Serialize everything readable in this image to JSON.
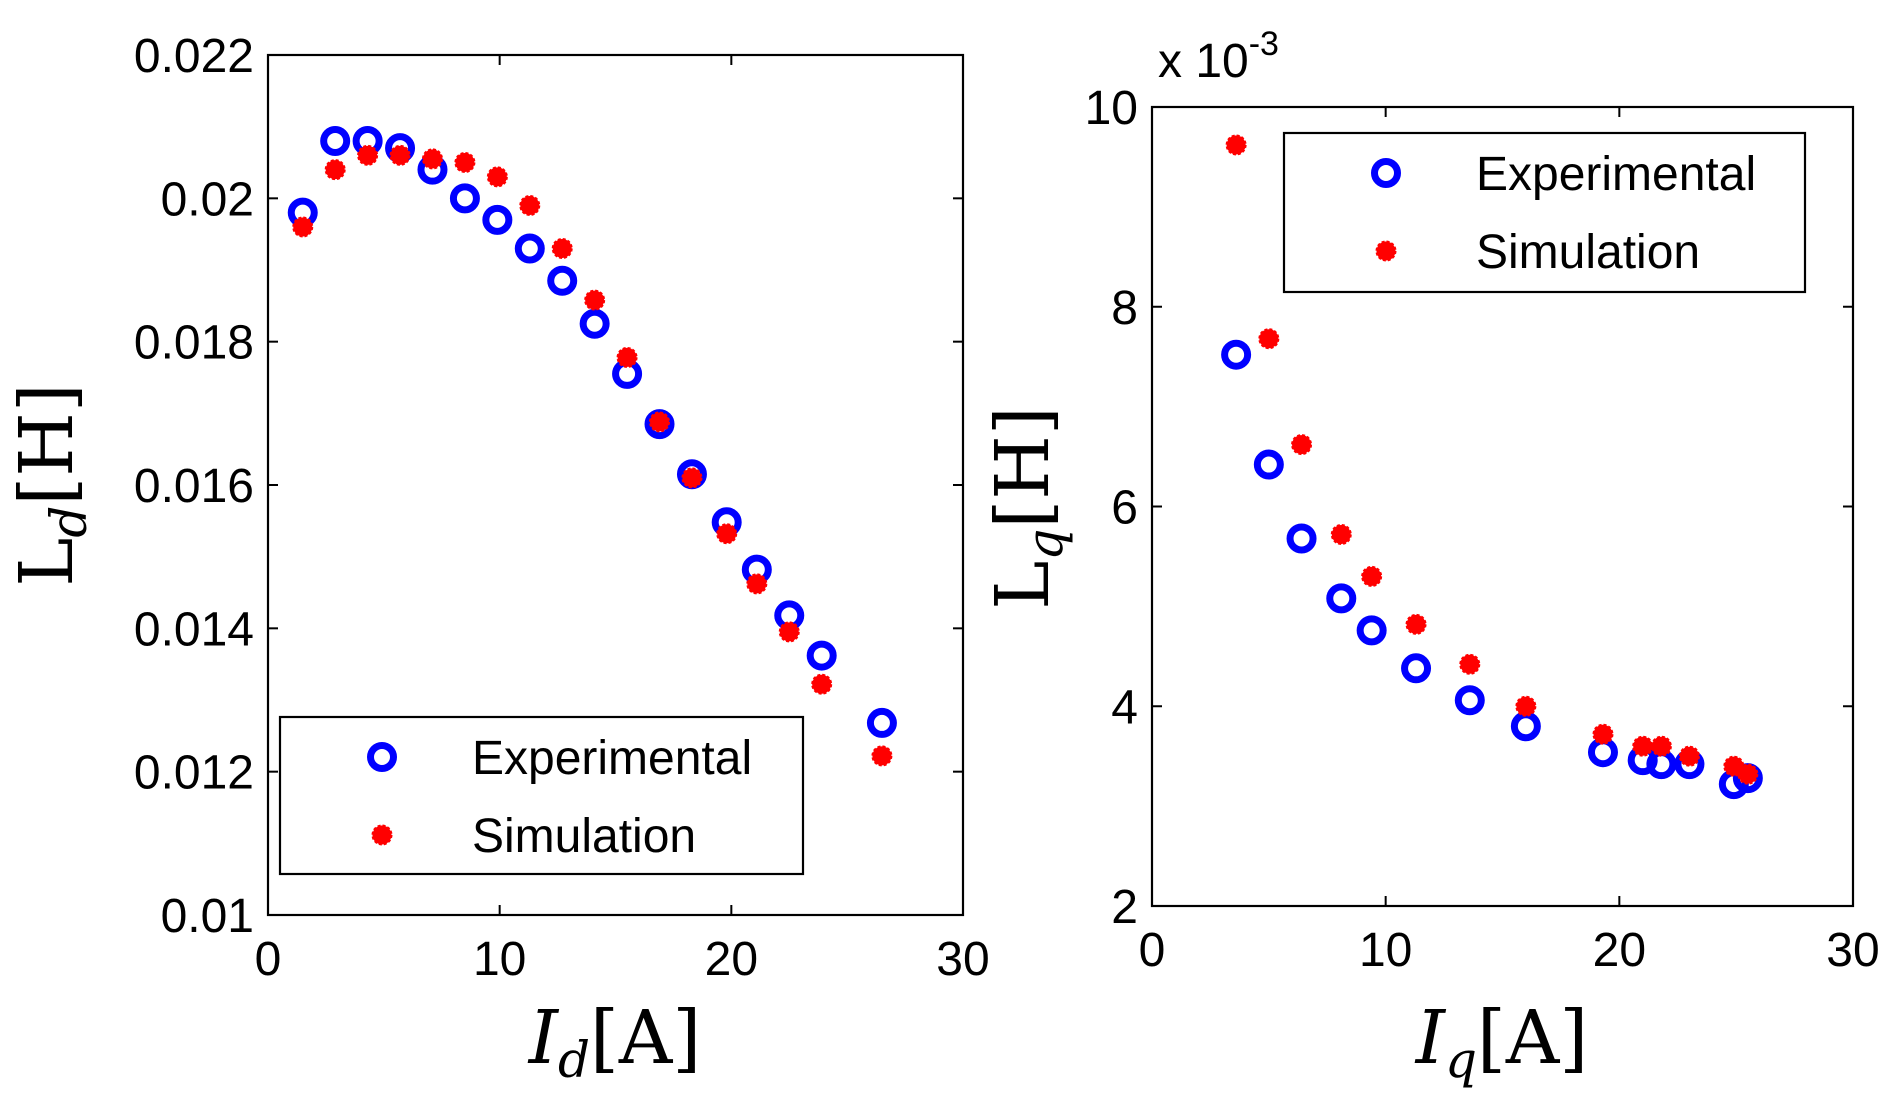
{
  "chart_data": [
    {
      "type": "scatter",
      "id": "ld",
      "xlabel": {
        "main": "I",
        "sub": "d",
        "unit": "[A]"
      },
      "ylabel": {
        "main": "L",
        "sub": "d",
        "unit": "[H]"
      },
      "xlim": [
        0,
        30
      ],
      "ylim": [
        0.01,
        0.022
      ],
      "xticks": [
        0,
        10,
        20,
        30
      ],
      "yticks": [
        0.01,
        0.012,
        0.014,
        0.016,
        0.018,
        0.02,
        0.022
      ],
      "xtick_labels": [
        "0",
        "10",
        "20",
        "30"
      ],
      "ytick_labels": [
        "0.01",
        "0.012",
        "0.014",
        "0.016",
        "0.018",
        "0.02",
        "0.022"
      ],
      "exponent_label": "",
      "legend": {
        "position": "bottom-left",
        "entries": [
          "Experimental",
          "Simulation"
        ]
      },
      "series": [
        {
          "name": "Experimental",
          "marker": "circle-open",
          "color": "#0000ff",
          "points": [
            [
              1.5,
              0.0198
            ],
            [
              2.9,
              0.0208
            ],
            [
              4.3,
              0.0208
            ],
            [
              5.7,
              0.0207
            ],
            [
              7.1,
              0.0204
            ],
            [
              8.5,
              0.02
            ],
            [
              9.9,
              0.0197
            ],
            [
              11.3,
              0.0193
            ],
            [
              12.7,
              0.01885
            ],
            [
              14.1,
              0.01825
            ],
            [
              15.5,
              0.01755
            ],
            [
              16.9,
              0.01685
            ],
            [
              18.3,
              0.01615
            ],
            [
              19.8,
              0.01548
            ],
            [
              21.1,
              0.01482
            ],
            [
              22.5,
              0.01418
            ],
            [
              23.9,
              0.01362
            ],
            [
              26.5,
              0.01268
            ]
          ]
        },
        {
          "name": "Simulation",
          "marker": "dot",
          "color": "#ff0000",
          "points": [
            [
              1.5,
              0.0196
            ],
            [
              2.9,
              0.0204
            ],
            [
              4.3,
              0.0206
            ],
            [
              5.7,
              0.0206
            ],
            [
              7.1,
              0.02055
            ],
            [
              8.5,
              0.0205
            ],
            [
              9.9,
              0.0203
            ],
            [
              11.3,
              0.0199
            ],
            [
              12.7,
              0.0193
            ],
            [
              14.1,
              0.01858
            ],
            [
              15.5,
              0.01778
            ],
            [
              16.9,
              0.01688
            ],
            [
              18.3,
              0.0161
            ],
            [
              19.8,
              0.01532
            ],
            [
              21.1,
              0.01462
            ],
            [
              22.5,
              0.01395
            ],
            [
              23.9,
              0.01322
            ],
            [
              26.5,
              0.01222
            ]
          ]
        }
      ]
    },
    {
      "type": "scatter",
      "id": "lq",
      "xlabel": {
        "main": "I",
        "sub": "q",
        "unit": "[A]"
      },
      "ylabel": {
        "main": "L",
        "sub": "q",
        "unit": "[H]"
      },
      "xlim": [
        0,
        30
      ],
      "ylim": [
        2,
        10
      ],
      "xticks": [
        0,
        10,
        20,
        30
      ],
      "yticks": [
        2,
        4,
        6,
        8,
        10
      ],
      "xtick_labels": [
        "0",
        "10",
        "20",
        "30"
      ],
      "ytick_labels": [
        "2",
        "4",
        "6",
        "8",
        "10"
      ],
      "exponent_label": "x 10",
      "exponent_power": "-3",
      "legend": {
        "position": "top-right",
        "entries": [
          "Experimental",
          "Simulation"
        ]
      },
      "series": [
        {
          "name": "Experimental",
          "marker": "circle-open",
          "color": "#0000ff",
          "points": [
            [
              3.6,
              7.52
            ],
            [
              5.0,
              6.42
            ],
            [
              6.4,
              5.68
            ],
            [
              8.1,
              5.08
            ],
            [
              9.4,
              4.76
            ],
            [
              11.3,
              4.38
            ],
            [
              13.6,
              4.06
            ],
            [
              16.0,
              3.8
            ],
            [
              19.3,
              3.54
            ],
            [
              21.0,
              3.46
            ],
            [
              21.8,
              3.42
            ],
            [
              23.0,
              3.42
            ],
            [
              24.9,
              3.22
            ],
            [
              25.5,
              3.28
            ]
          ]
        },
        {
          "name": "Simulation",
          "marker": "dot",
          "color": "#ff0000",
          "points": [
            [
              3.6,
              9.62
            ],
            [
              5.0,
              7.68
            ],
            [
              6.4,
              6.62
            ],
            [
              8.1,
              5.72
            ],
            [
              9.4,
              5.3
            ],
            [
              11.3,
              4.82
            ],
            [
              13.6,
              4.42
            ],
            [
              16.0,
              4.0
            ],
            [
              19.3,
              3.72
            ],
            [
              21.0,
              3.6
            ],
            [
              21.8,
              3.6
            ],
            [
              23.0,
              3.5
            ],
            [
              24.9,
              3.4
            ],
            [
              25.5,
              3.32
            ]
          ]
        }
      ]
    }
  ]
}
